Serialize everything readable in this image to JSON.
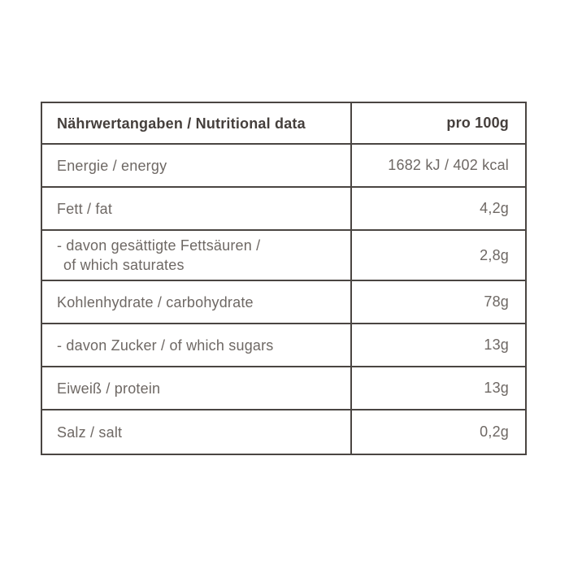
{
  "colors": {
    "background": "#ffffff",
    "border": "#4a4542",
    "header_text": "#453f3c",
    "body_text": "#6e6864"
  },
  "table": {
    "header": {
      "label": "Nährwertangaben / Nutritional data",
      "value": "pro 100g"
    },
    "rows": [
      {
        "label": "Energie / energy",
        "value": "1682 kJ / 402 kcal"
      },
      {
        "label": "Fett / fat",
        "value": "4,2g"
      },
      {
        "label": "- davon gesättigte Fettsäuren /",
        "label2": "of which saturates",
        "value": "2,8g"
      },
      {
        "label": "Kohlenhydrate / carbohydrate",
        "value": "78g"
      },
      {
        "label": "- davon Zucker / of which sugars",
        "value": "13g"
      },
      {
        "label": "Eiweiß / protein",
        "value": "13g"
      },
      {
        "label": "Salz / salt",
        "value": "0,2g"
      }
    ]
  }
}
